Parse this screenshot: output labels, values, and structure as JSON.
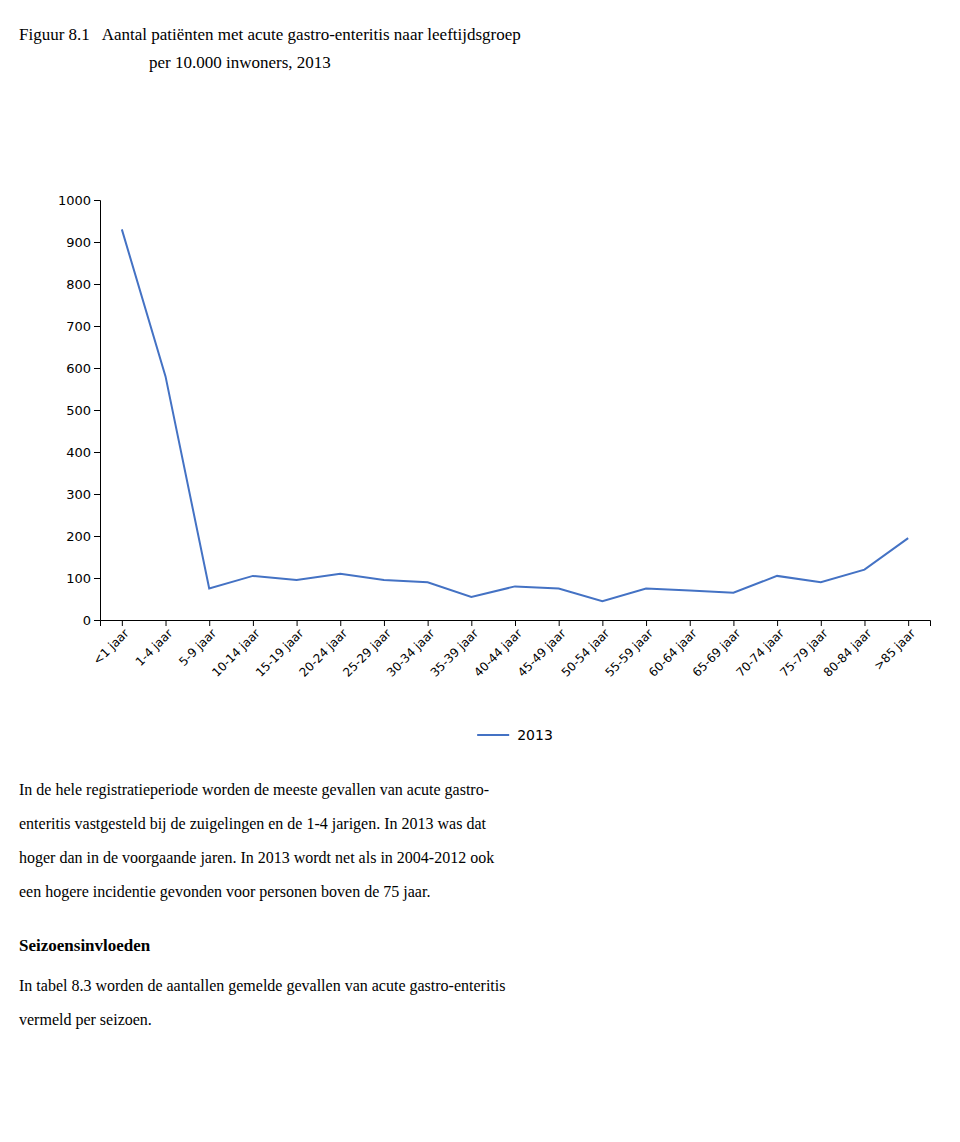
{
  "chart_data": {
    "type": "line",
    "title": "Figuur 8.1   Aantal patiënten met acute gastro-enteritis naar leeftijdsgroep",
    "subtitle": "per 10.000 inwoners, 2013",
    "categories": [
      "<1 jaar",
      "1-4 jaar",
      "5-9 jaar",
      "10-14 jaar",
      "15-19 jaar",
      "20-24 jaar",
      "25-29 jaar",
      "30-34 jaar",
      "35-39 jaar",
      "40-44 jaar",
      "45-49 jaar",
      "50-54 jaar",
      "55-59 jaar",
      "60-64 jaar",
      "65-69 jaar",
      "70-74 jaar",
      "75-79 jaar",
      "80-84 jaar",
      ">85 jaar"
    ],
    "series": [
      {
        "name": "2013",
        "color": "#4472C4",
        "values": [
          930,
          580,
          75,
          105,
          95,
          110,
          95,
          90,
          55,
          80,
          75,
          45,
          75,
          70,
          65,
          105,
          90,
          120,
          195
        ]
      }
    ],
    "ylim": [
      0,
      1000
    ],
    "yticks": [
      0,
      100,
      200,
      300,
      400,
      500,
      600,
      700,
      800,
      900,
      1000
    ],
    "grid": false,
    "annotations": [
      [
        "In de hele registratieperiode worden de meeste gevallen van acute gastro-",
        "enteritis vastgesteld bij de zuigelingen en de 1-4 jarigen. In 2013 was dat",
        "hoger dan in de voorgaande jaren. In 2013 wordt net als in 2004-2012 ook",
        "een hogere incidentie gevonden voor personen boven de 75 jaar."
      ],
      [
        "Seizoensinvloeden"
      ],
      [
        "In tabel 8.3 worden de aantallen gemelde gevallen van acute gastro-enteritis",
        "vermeld per seizoen."
      ]
    ]
  }
}
